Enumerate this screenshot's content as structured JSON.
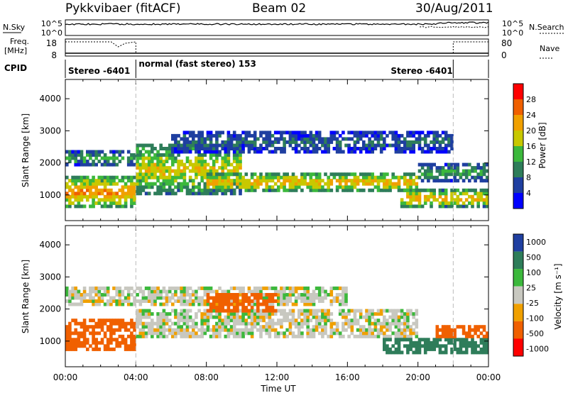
{
  "header": {
    "station": "Pykkvibaer (fitACF)",
    "beam": "Beam 02",
    "date": "30/Aug/2011"
  },
  "noise_panel": {
    "left_label": "N.Sky",
    "right_label": "N.Search",
    "left_ticks": [
      "10^5",
      "10^0"
    ],
    "right_ticks": [
      "10^5",
      "10^0"
    ]
  },
  "freq_panel": {
    "left_label_1": "Freq.",
    "left_label_2": "[MHz]",
    "right_label": "Nave",
    "left_ticks": [
      "18",
      "8"
    ],
    "right_ticks": [
      "80",
      "0"
    ]
  },
  "cpid_panel": {
    "label": "CPID",
    "segments": [
      {
        "label": "Stereo -6401",
        "start_hour": 0,
        "end_hour": 4
      },
      {
        "label": "normal (fast stereo) 153",
        "start_hour": 4,
        "end_hour": 22
      },
      {
        "label": "Stereo -6401",
        "start_hour": 22,
        "end_hour": 24
      }
    ]
  },
  "colors": {
    "power": [
      "#0000ff",
      "#1f3fa0",
      "#2e7d5a",
      "#3cb83c",
      "#c8c800",
      "#f0a000",
      "#f06000",
      "#ff0000"
    ],
    "velocity": [
      "#1f3fa0",
      "#2e7d5a",
      "#3cb83c",
      "#c8c8c0",
      "#f0a000",
      "#f06000",
      "#ff0000"
    ],
    "ground_scatter": "#c8c8c0"
  },
  "chart_data": [
    {
      "type": "heatmap",
      "panel": "power",
      "ylabel": "Slant Range [km]",
      "xlabel": "",
      "x_range_hours": [
        0,
        24
      ],
      "ylim": [
        200,
        4600
      ],
      "y_ticks": [
        1000,
        2000,
        3000,
        4000
      ],
      "colorbar": {
        "label": "Power [dB]",
        "tick_labels": [
          "28",
          "24",
          "20",
          "16",
          "12",
          "8",
          "4"
        ],
        "range": [
          0,
          32
        ]
      },
      "bands": [
        {
          "start_hour": 0.0,
          "end_hour": 4.0,
          "range_min": 600,
          "range_max": 1600,
          "value": 26
        },
        {
          "start_hour": 0.0,
          "end_hour": 4.0,
          "range_min": 1900,
          "range_max": 2400,
          "value": 14
        },
        {
          "start_hour": 4.0,
          "end_hour": 10.0,
          "range_min": 1000,
          "range_max": 2600,
          "value": 20
        },
        {
          "start_hour": 8.0,
          "end_hour": 20.0,
          "range_min": 1100,
          "range_max": 1700,
          "value": 24
        },
        {
          "start_hour": 6.0,
          "end_hour": 22.0,
          "range_min": 2300,
          "range_max": 3000,
          "value": 9
        },
        {
          "start_hour": 19.0,
          "end_hour": 24.0,
          "range_min": 600,
          "range_max": 1200,
          "value": 24
        },
        {
          "start_hour": 20.0,
          "end_hour": 24.0,
          "range_min": 1400,
          "range_max": 2000,
          "value": 14
        }
      ]
    },
    {
      "type": "heatmap",
      "panel": "velocity",
      "ylabel": "Slant Range [km]",
      "xlabel": "Time UT",
      "x_range_hours": [
        0,
        24
      ],
      "ylim": [
        200,
        4600
      ],
      "y_ticks": [
        1000,
        2000,
        3000,
        4000
      ],
      "x_tick_labels": [
        "00:00",
        "04:00",
        "08:00",
        "12:00",
        "16:00",
        "20:00",
        "00:00"
      ],
      "colorbar": {
        "label": "Velocity [m s⁻¹]",
        "tick_labels": [
          "1000",
          "500",
          "100",
          "25",
          "-25",
          "-100",
          "-500",
          "-1000"
        ]
      },
      "bands": [
        {
          "start_hour": 0.0,
          "end_hour": 4.0,
          "range_min": 700,
          "range_max": 1700,
          "value": -300
        },
        {
          "start_hour": 4.0,
          "end_hour": 20.0,
          "range_min": 1100,
          "range_max": 2000,
          "value": 0
        },
        {
          "start_hour": 0.0,
          "end_hour": 16.0,
          "range_min": 2100,
          "range_max": 2700,
          "value": 0
        },
        {
          "start_hour": 8.0,
          "end_hour": 12.0,
          "range_min": 1900,
          "range_max": 2500,
          "value": -200
        },
        {
          "start_hour": 18.0,
          "end_hour": 24.0,
          "range_min": 600,
          "range_max": 1100,
          "value": 300
        },
        {
          "start_hour": 21.0,
          "end_hour": 24.0,
          "range_min": 1100,
          "range_max": 1500,
          "value": -300
        }
      ]
    }
  ]
}
